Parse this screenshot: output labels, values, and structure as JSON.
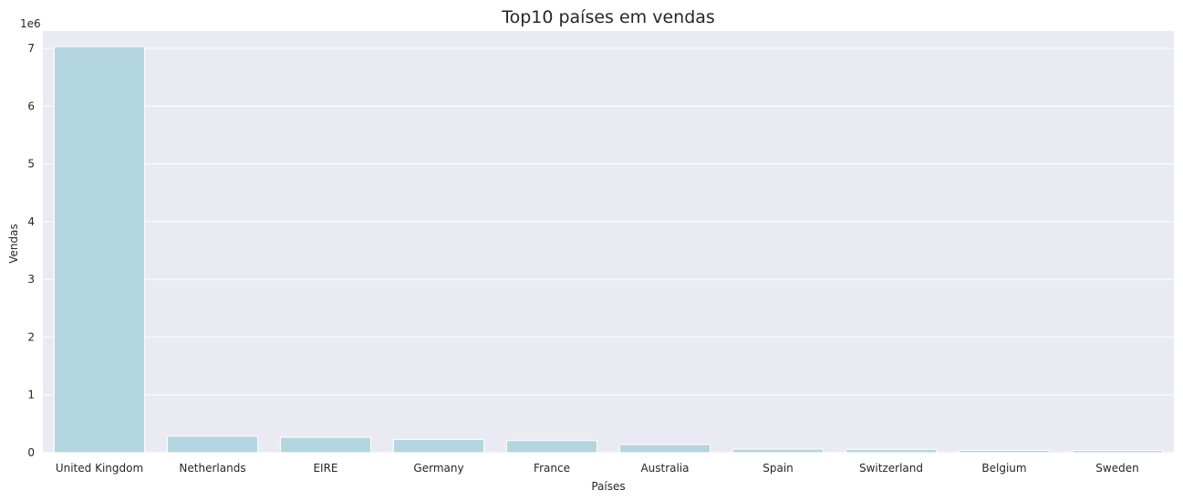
{
  "chart_data": {
    "type": "bar",
    "title": "Top10 países em vendas",
    "xlabel": "Países",
    "ylabel": "Vendas",
    "y_offset_label": "1e6",
    "categories": [
      "United Kingdom",
      "Netherlands",
      "EIRE",
      "Germany",
      "France",
      "Australia",
      "Spain",
      "Switzerland",
      "Belgium",
      "Sweden"
    ],
    "values": [
      7030000,
      285000,
      266000,
      228000,
      209000,
      139000,
      61000,
      57000,
      41000,
      38000
    ],
    "ylim": [
      0,
      7300000
    ],
    "yticks": [
      0,
      1,
      2,
      3,
      4,
      5,
      6,
      7
    ],
    "ytick_scale": 1000000,
    "grid": true,
    "bar_color": "#b4d6e0",
    "plot_bg": "#eaeaf2",
    "grid_color": "#ffffff"
  }
}
